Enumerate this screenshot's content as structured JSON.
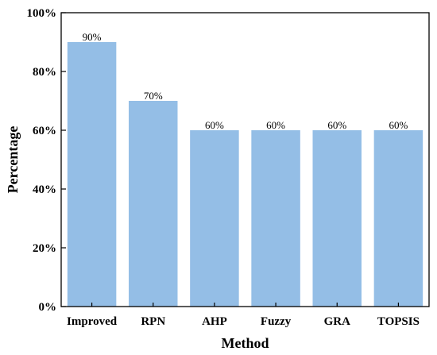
{
  "chart_data": {
    "type": "bar",
    "title": "",
    "xlabel": "Method",
    "ylabel": "Percentage",
    "categories": [
      "Improved",
      "RPN",
      "AHP",
      "Fuzzy",
      "GRA",
      "TOPSIS"
    ],
    "values": [
      90,
      70,
      60,
      60,
      60,
      60
    ],
    "data_labels": [
      "90%",
      "70%",
      "60%",
      "60%",
      "60%",
      "60%"
    ],
    "ylim": [
      0,
      100
    ],
    "yticks": [
      0,
      20,
      40,
      60,
      80,
      100
    ],
    "ytick_labels": [
      "0%",
      "20%",
      "40%",
      "60%",
      "80%",
      "100%"
    ],
    "bar_color": "#94BEE6",
    "grid": false,
    "legend": "none"
  }
}
